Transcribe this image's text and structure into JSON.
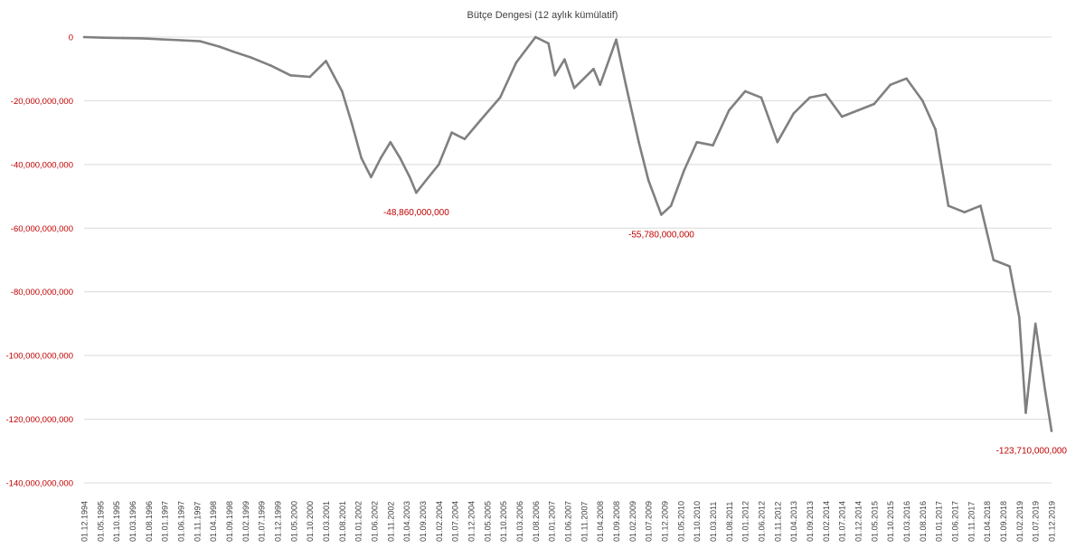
{
  "chart_data": {
    "type": "line",
    "title": "Bütçe Dengesi (12 aylık kümülatif)",
    "xlabel": "",
    "ylabel": "",
    "ylim": [
      -140000000000,
      0
    ],
    "y_ticks": [
      {
        "value": 0,
        "label": "0"
      },
      {
        "value": -20000000000,
        "label": "-20,000,000,000"
      },
      {
        "value": -40000000000,
        "label": "-40,000,000,000"
      },
      {
        "value": -60000000000,
        "label": "-60,000,000,000"
      },
      {
        "value": -80000000000,
        "label": "-80,000,000,000"
      },
      {
        "value": -100000000000,
        "label": "-100,000,000,000"
      },
      {
        "value": -120000000000,
        "label": "-120,000,000,000"
      },
      {
        "value": -140000000000,
        "label": "-140,000,000,000"
      }
    ],
    "x_start": "01.12.1994",
    "x_ticks": [
      "01.12.1994",
      "01.05.1995",
      "01.10.1995",
      "01.03.1996",
      "01.08.1996",
      "01.01.1997",
      "01.06.1997",
      "01.11.1997",
      "01.04.1998",
      "01.09.1998",
      "01.02.1999",
      "01.07.1999",
      "01.12.1999",
      "01.05.2000",
      "01.10.2000",
      "01.03.2001",
      "01.08.2001",
      "01.01.2002",
      "01.06.2002",
      "01.11.2002",
      "01.04.2003",
      "01.09.2003",
      "01.02.2004",
      "01.07.2004",
      "01.12.2004",
      "01.05.2005",
      "01.10.2005",
      "01.03.2006",
      "01.08.2006",
      "01.01.2007",
      "01.06.2007",
      "01.11.2007",
      "01.04.2008",
      "01.09.2008",
      "01.02.2009",
      "01.07.2009",
      "01.12.2009",
      "01.05.2010",
      "01.10.2010",
      "01.03.2011",
      "01.08.2011",
      "01.01.2012",
      "01.06.2012",
      "01.11.2012",
      "01.04.2013",
      "01.09.2013",
      "01.02.2014",
      "01.07.2014",
      "01.12.2014",
      "01.05.2015",
      "01.10.2015",
      "01.03.2016",
      "01.08.2016",
      "01.01.2017",
      "01.06.2017",
      "01.11.2017",
      "01.04.2018",
      "01.09.2018",
      "01.02.2019",
      "01.07.2019",
      "01.12.2019"
    ],
    "grid": true,
    "legend": "none",
    "line_color": "#808080",
    "series": [
      {
        "points": [
          [
            "01.12.1994",
            0
          ],
          [
            "01.06.1995",
            -200000000
          ],
          [
            "01.12.1995",
            -300000000
          ],
          [
            "01.06.1996",
            -400000000
          ],
          [
            "01.12.1996",
            -700000000
          ],
          [
            "01.06.1997",
            -1000000000
          ],
          [
            "01.12.1997",
            -1300000000
          ],
          [
            "01.06.1998",
            -3000000000
          ],
          [
            "01.10.1998",
            -4500000000
          ],
          [
            "01.04.1999",
            -6500000000
          ],
          [
            "01.10.1999",
            -9000000000
          ],
          [
            "01.04.2000",
            -12000000000
          ],
          [
            "01.10.2000",
            -12500000000
          ],
          [
            "01.03.2001",
            -7500000000
          ],
          [
            "01.08.2001",
            -17000000000
          ],
          [
            "01.11.2001",
            -27000000000
          ],
          [
            "01.02.2002",
            -38000000000
          ],
          [
            "01.05.2002",
            -44000000000
          ],
          [
            "01.08.2002",
            -38000000000
          ],
          [
            "01.11.2002",
            -33000000000
          ],
          [
            "01.02.2003",
            -38000000000
          ],
          [
            "01.05.2003",
            -44000000000
          ],
          [
            "01.07.2003",
            -48860000000
          ],
          [
            "01.10.2003",
            -45000000000
          ],
          [
            "01.02.2004",
            -40000000000
          ],
          [
            "01.06.2004",
            -30000000000
          ],
          [
            "01.10.2004",
            -32000000000
          ],
          [
            "01.03.2005",
            -26000000000
          ],
          [
            "01.09.2005",
            -19000000000
          ],
          [
            "01.02.2006",
            -8000000000
          ],
          [
            "01.08.2006",
            0
          ],
          [
            "01.12.2006",
            -2000000000
          ],
          [
            "01.02.2007",
            -12000000000
          ],
          [
            "01.05.2007",
            -7000000000
          ],
          [
            "01.08.2007",
            -16000000000
          ],
          [
            "01.11.2007",
            -13000000000
          ],
          [
            "01.02.2008",
            -10000000000
          ],
          [
            "01.04.2008",
            -15000000000
          ],
          [
            "01.09.2008",
            -800000000
          ],
          [
            "01.12.2008",
            -15000000000
          ],
          [
            "01.04.2009",
            -33000000000
          ],
          [
            "01.07.2009",
            -45000000000
          ],
          [
            "01.11.2009",
            -55780000000
          ],
          [
            "01.02.2010",
            -53000000000
          ],
          [
            "01.06.2010",
            -42000000000
          ],
          [
            "01.10.2010",
            -33000000000
          ],
          [
            "01.03.2011",
            -34000000000
          ],
          [
            "01.08.2011",
            -23000000000
          ],
          [
            "01.01.2012",
            -17000000000
          ],
          [
            "01.06.2012",
            -19000000000
          ],
          [
            "01.11.2012",
            -33000000000
          ],
          [
            "01.04.2013",
            -24000000000
          ],
          [
            "01.09.2013",
            -19000000000
          ],
          [
            "01.02.2014",
            -18000000000
          ],
          [
            "01.07.2014",
            -25000000000
          ],
          [
            "01.12.2014",
            -23000000000
          ],
          [
            "01.05.2015",
            -21000000000
          ],
          [
            "01.10.2015",
            -15000000000
          ],
          [
            "01.03.2016",
            -13000000000
          ],
          [
            "01.08.2016",
            -20000000000
          ],
          [
            "01.12.2016",
            -29000000000
          ],
          [
            "01.04.2017",
            -53000000000
          ],
          [
            "01.09.2017",
            -55000000000
          ],
          [
            "01.02.2018",
            -53000000000
          ],
          [
            "01.06.2018",
            -70000000000
          ],
          [
            "01.11.2018",
            -72000000000
          ],
          [
            "01.02.2019",
            -88000000000
          ],
          [
            "01.04.2019",
            -118000000000
          ],
          [
            "01.07.2019",
            -90000000000
          ],
          [
            "01.10.2019",
            -111000000000
          ],
          [
            "01.12.2019",
            -123710000000
          ]
        ]
      }
    ],
    "annotations": [
      {
        "text": "-48,860,000,000",
        "x": "01.07.2003",
        "y": -48860000000
      },
      {
        "text": "-55,780,000,000",
        "x": "01.11.2009",
        "y": -55780000000
      },
      {
        "text": "-123,710,000,000",
        "x": "01.12.2019",
        "y": -123710000000
      }
    ]
  }
}
